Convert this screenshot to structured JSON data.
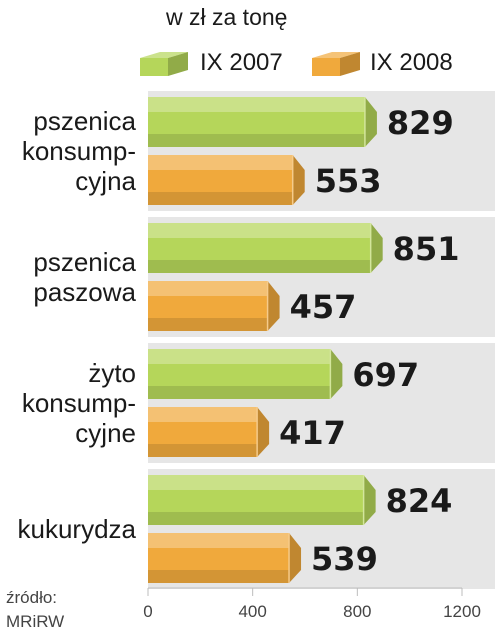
{
  "chart_data": {
    "type": "bar",
    "orientation": "horizontal",
    "subtitle": "w zł za tonę",
    "categories": [
      [
        "pszenica",
        "konsump-",
        "cyjna"
      ],
      [
        "pszenica",
        "paszowa"
      ],
      [
        "żyto",
        "konsump-",
        "cyjne"
      ],
      [
        "kukurydza"
      ]
    ],
    "series": [
      {
        "name": "IX 2007",
        "values": [
          829,
          851,
          697,
          824
        ],
        "color": "#b5d65a"
      },
      {
        "name": "IX 2008",
        "values": [
          553,
          457,
          417,
          539
        ],
        "color": "#f0a93c"
      }
    ],
    "xlim": [
      0,
      1200
    ],
    "xticks": [
      "0",
      "400",
      "800",
      "1200"
    ],
    "legend_position": "top",
    "grid": false,
    "source": [
      "źródło:",
      "MRiRW"
    ],
    "colors": {
      "panel_band": "#e6e6e6",
      "axis": "#bdbdbd"
    }
  }
}
